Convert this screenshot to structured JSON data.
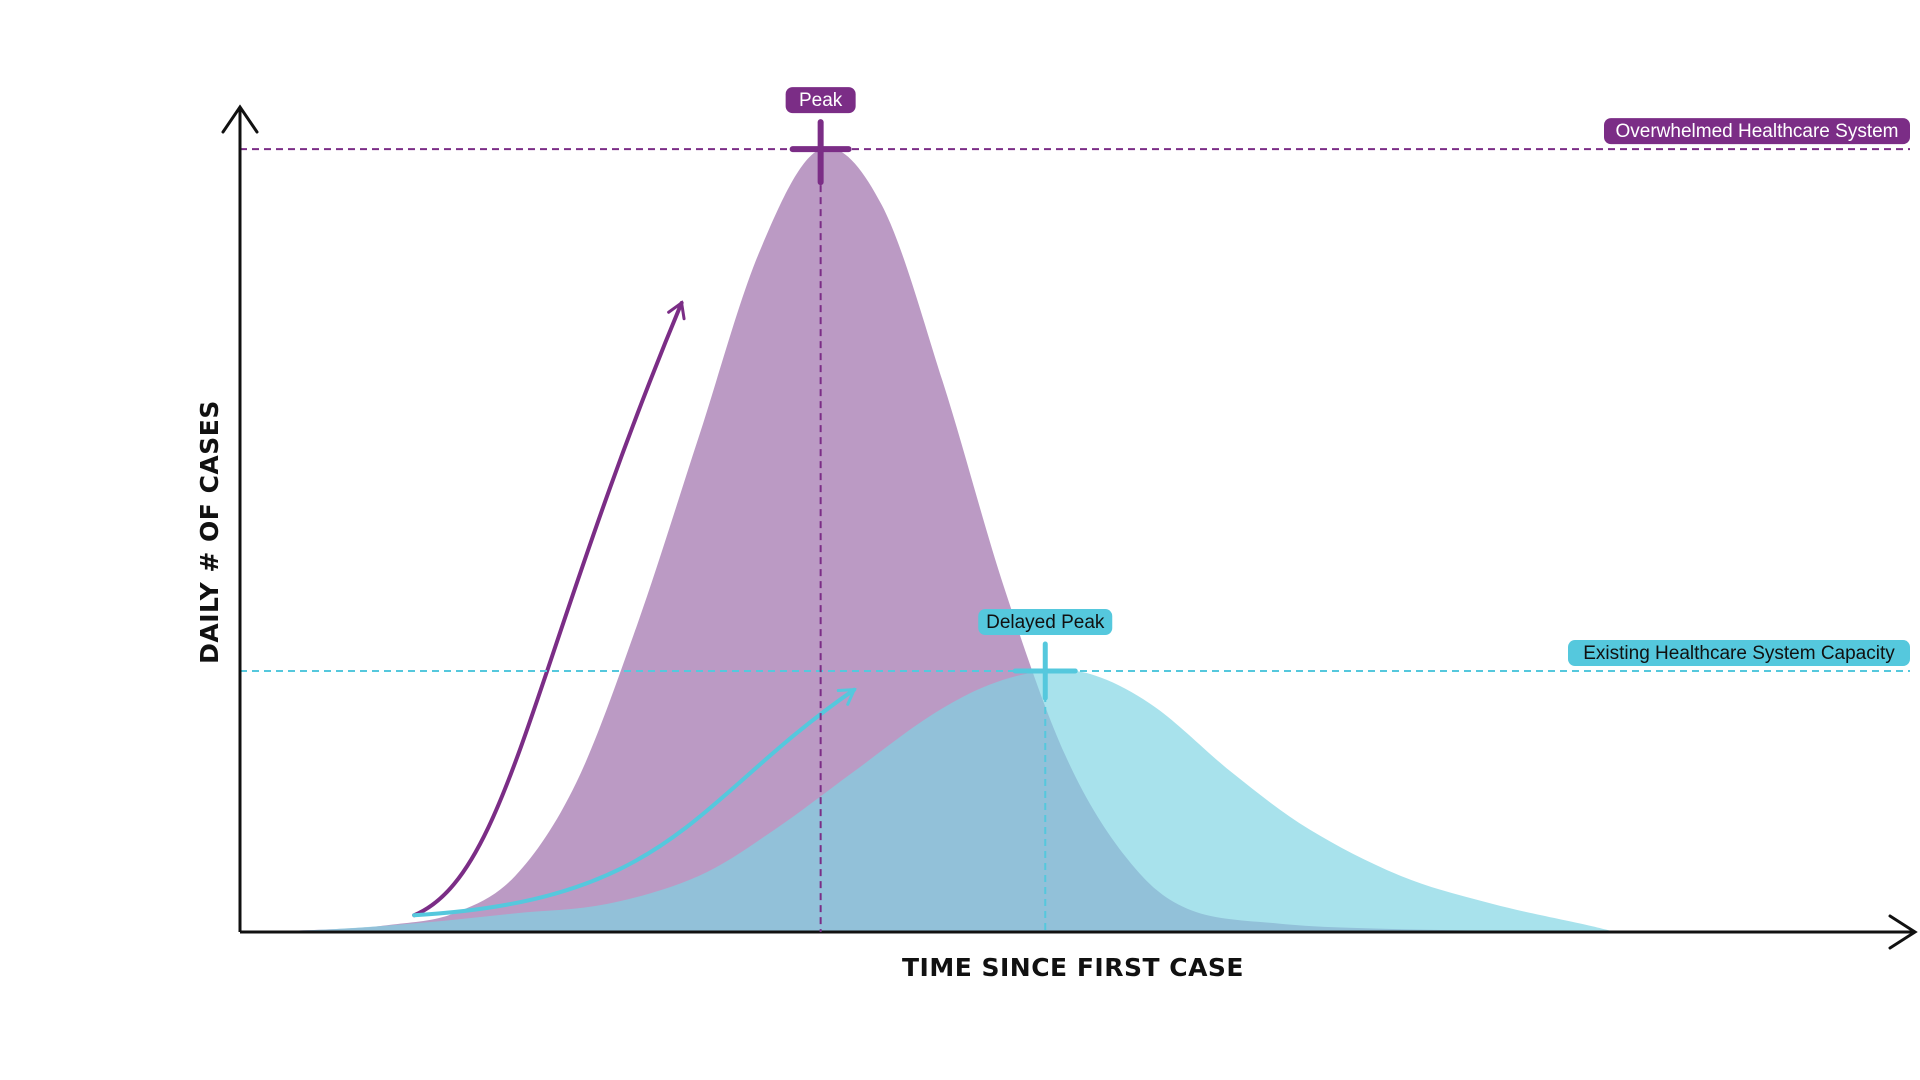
{
  "chart_data": {
    "type": "area",
    "xlabel": "TIME SINCE FIRST CASE",
    "ylabel": "DAILY # OF CASES",
    "series": [
      {
        "color": "#bb9ac4",
        "stroke": "#7b2d86",
        "peak_x": 0.38,
        "peak_y": 0.84,
        "points": [
          [
            0,
            0
          ],
          [
            0.06,
            0.003
          ],
          [
            0.1,
            0.008
          ],
          [
            0.14,
            0.02
          ],
          [
            0.18,
            0.06
          ],
          [
            0.22,
            0.16
          ],
          [
            0.26,
            0.33
          ],
          [
            0.3,
            0.53
          ],
          [
            0.34,
            0.73
          ],
          [
            0.38,
            0.84
          ],
          [
            0.42,
            0.78
          ],
          [
            0.46,
            0.59
          ],
          [
            0.5,
            0.37
          ],
          [
            0.54,
            0.19
          ],
          [
            0.58,
            0.08
          ],
          [
            0.62,
            0.025
          ],
          [
            0.68,
            0.009
          ],
          [
            0.76,
            0.003
          ],
          [
            0.9,
            0
          ]
        ]
      },
      {
        "color": "#7fd4e3",
        "stroke": "#55c8dd",
        "peak_x": 0.527,
        "peak_y": 0.28,
        "points": [
          [
            0,
            0
          ],
          [
            0.06,
            0.003
          ],
          [
            0.12,
            0.01
          ],
          [
            0.18,
            0.02
          ],
          [
            0.24,
            0.03
          ],
          [
            0.3,
            0.06
          ],
          [
            0.35,
            0.11
          ],
          [
            0.4,
            0.17
          ],
          [
            0.45,
            0.23
          ],
          [
            0.49,
            0.265
          ],
          [
            0.527,
            0.28
          ],
          [
            0.56,
            0.275
          ],
          [
            0.6,
            0.24
          ],
          [
            0.65,
            0.17
          ],
          [
            0.7,
            0.11
          ],
          [
            0.76,
            0.06
          ],
          [
            0.82,
            0.03
          ],
          [
            0.88,
            0.008
          ],
          [
            0.9,
            0
          ]
        ]
      }
    ],
    "reference_lines": [
      {
        "label": "Overwhelmed Healthcare System",
        "y": 0.84,
        "color": "#7b2d86"
      },
      {
        "label": "Existing Healthcare System Capacity",
        "y": 0.28,
        "color": "#55c8dd"
      }
    ],
    "peak_markers": [
      {
        "label": "Peak",
        "x": 0.38,
        "y": 0.84,
        "color": "#7b2d86"
      },
      {
        "label": "Delayed Peak",
        "x": 0.527,
        "y": 0.28,
        "color": "#55c8dd"
      }
    ],
    "xlim": [
      0,
      1
    ],
    "ylim": [
      0,
      1
    ],
    "grid": false,
    "legend": "none"
  }
}
